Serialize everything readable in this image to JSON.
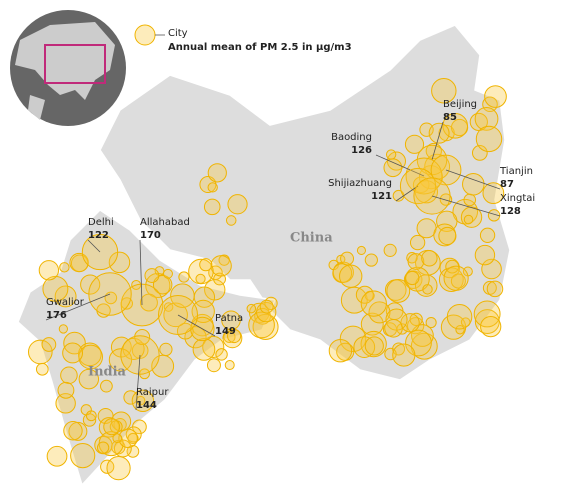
{
  "legend": {
    "item": "City",
    "description": "Annual mean of PM 2.5 in µg/m3"
  },
  "countries": [
    "China",
    "India"
  ],
  "cities": [
    {
      "name": "Beijing",
      "value": 85
    },
    {
      "name": "Baoding",
      "value": 126
    },
    {
      "name": "Shijiazhuang",
      "value": 121
    },
    {
      "name": "Tianjin",
      "value": 87
    },
    {
      "name": "Xingtai",
      "value": 128
    },
    {
      "name": "Delhi",
      "value": 122
    },
    {
      "name": "Allahabad",
      "value": 170
    },
    {
      "name": "Gwalior",
      "value": 176
    },
    {
      "name": "Patna",
      "value": 149
    },
    {
      "name": "Raipur",
      "value": 144
    }
  ]
}
